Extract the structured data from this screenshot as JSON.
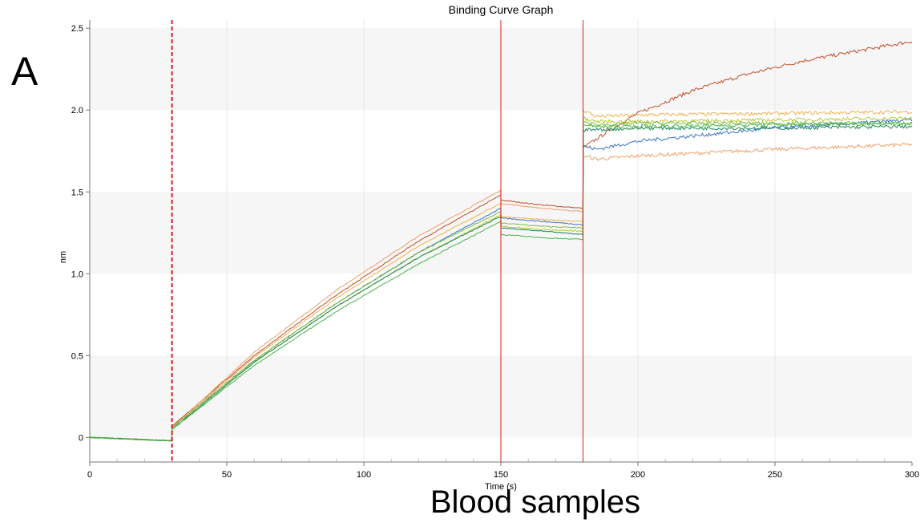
{
  "panel_label": "A",
  "caption": "Blood samples",
  "chart_data": {
    "type": "line",
    "title": "Binding Curve Graph",
    "xlabel": "Time (s)",
    "ylabel": "nm",
    "xlim": [
      0,
      300
    ],
    "ylim": [
      -0.15,
      2.55
    ],
    "x_ticks": [
      0,
      50,
      100,
      150,
      200,
      250,
      300
    ],
    "y_ticks": [
      0,
      0.5,
      1.0,
      1.5,
      2.0,
      2.5
    ],
    "y_tick_labels": [
      "0",
      "0.5",
      "1.0",
      "1.5",
      "2.0",
      "2.5"
    ],
    "grid_bands": true,
    "step_markers": [
      {
        "x": 30,
        "style": "dashed",
        "color": "#e41a1c"
      },
      {
        "x": 150,
        "style": "solid",
        "color": "#e41a1c"
      },
      {
        "x": 180,
        "style": "solid",
        "color": "#e41a1c"
      }
    ],
    "series": [
      {
        "color": "#c0502a",
        "points": [
          [
            0,
            0
          ],
          [
            15,
            -0.01
          ],
          [
            29.9,
            -0.02
          ],
          [
            30.1,
            0.07
          ],
          [
            60,
            0.5
          ],
          [
            90,
            0.87
          ],
          [
            120,
            1.2
          ],
          [
            149.9,
            1.48
          ],
          [
            150.1,
            1.45
          ],
          [
            165,
            1.42
          ],
          [
            179.9,
            1.4
          ],
          [
            180.1,
            1.77
          ],
          [
            190,
            1.88
          ],
          [
            200,
            1.98
          ],
          [
            220,
            2.12
          ],
          [
            240,
            2.22
          ],
          [
            260,
            2.3
          ],
          [
            280,
            2.36
          ],
          [
            300,
            2.42
          ]
        ]
      },
      {
        "color": "#ee9f6a",
        "points": [
          [
            0,
            0
          ],
          [
            15,
            -0.01
          ],
          [
            29.9,
            -0.02
          ],
          [
            30.1,
            0.06
          ],
          [
            60,
            0.52
          ],
          [
            90,
            0.9
          ],
          [
            120,
            1.23
          ],
          [
            149.9,
            1.51
          ],
          [
            150.1,
            1.43
          ],
          [
            165,
            1.4
          ],
          [
            179.9,
            1.38
          ],
          [
            180.1,
            1.72
          ],
          [
            185,
            1.7
          ],
          [
            200,
            1.72
          ],
          [
            250,
            1.76
          ],
          [
            300,
            1.79
          ]
        ]
      },
      {
        "color": "#f4b04c",
        "points": [
          [
            0,
            0
          ],
          [
            15,
            -0.01
          ],
          [
            29.9,
            -0.02
          ],
          [
            30.1,
            0.06
          ],
          [
            60,
            0.49
          ],
          [
            90,
            0.85
          ],
          [
            120,
            1.17
          ],
          [
            149.9,
            1.43
          ],
          [
            150.1,
            1.35
          ],
          [
            165,
            1.33
          ],
          [
            179.9,
            1.32
          ],
          [
            180.1,
            2.0
          ],
          [
            185,
            1.96
          ],
          [
            200,
            1.97
          ],
          [
            250,
            1.98
          ],
          [
            300,
            1.99
          ]
        ]
      },
      {
        "color": "#3a75c4",
        "points": [
          [
            0,
            0
          ],
          [
            15,
            -0.01
          ],
          [
            29.9,
            -0.02
          ],
          [
            30.1,
            0.06
          ],
          [
            60,
            0.47
          ],
          [
            90,
            0.82
          ],
          [
            120,
            1.13
          ],
          [
            149.9,
            1.4
          ],
          [
            150.1,
            1.34
          ],
          [
            165,
            1.32
          ],
          [
            179.9,
            1.3
          ],
          [
            180.1,
            1.78
          ],
          [
            185,
            1.76
          ],
          [
            200,
            1.81
          ],
          [
            250,
            1.89
          ],
          [
            300,
            1.94
          ]
        ]
      },
      {
        "color": "#b8c83a",
        "points": [
          [
            0,
            0
          ],
          [
            15,
            -0.01
          ],
          [
            29.9,
            -0.02
          ],
          [
            30.1,
            0.05
          ],
          [
            60,
            0.46
          ],
          [
            90,
            0.8
          ],
          [
            120,
            1.1
          ],
          [
            149.9,
            1.36
          ],
          [
            150.1,
            1.29
          ],
          [
            165,
            1.27
          ],
          [
            179.9,
            1.26
          ],
          [
            180.1,
            1.95
          ],
          [
            185,
            1.93
          ],
          [
            200,
            1.93
          ],
          [
            250,
            1.94
          ],
          [
            300,
            1.95
          ]
        ]
      },
      {
        "color": "#7fbf3f",
        "points": [
          [
            0,
            0
          ],
          [
            15,
            -0.01
          ],
          [
            29.9,
            -0.02
          ],
          [
            30.1,
            0.06
          ],
          [
            60,
            0.47
          ],
          [
            90,
            0.82
          ],
          [
            120,
            1.13
          ],
          [
            149.9,
            1.38
          ],
          [
            150.1,
            1.31
          ],
          [
            165,
            1.29
          ],
          [
            179.9,
            1.28
          ],
          [
            180.1,
            1.93
          ],
          [
            185,
            1.91
          ],
          [
            200,
            1.92
          ],
          [
            250,
            1.92
          ],
          [
            300,
            1.92
          ]
        ]
      },
      {
        "color": "#1f8a5a",
        "points": [
          [
            0,
            0
          ],
          [
            15,
            -0.01
          ],
          [
            29.9,
            -0.02
          ],
          [
            30.1,
            0.05
          ],
          [
            60,
            0.46
          ],
          [
            90,
            0.8
          ],
          [
            120,
            1.1
          ],
          [
            149.9,
            1.35
          ],
          [
            150.1,
            1.28
          ],
          [
            165,
            1.26
          ],
          [
            179.9,
            1.24
          ],
          [
            180.1,
            1.88
          ],
          [
            185,
            1.88
          ],
          [
            200,
            1.89
          ],
          [
            250,
            1.89
          ],
          [
            300,
            1.9
          ]
        ]
      },
      {
        "color": "#49b449",
        "points": [
          [
            0,
            0
          ],
          [
            15,
            -0.01
          ],
          [
            29.9,
            -0.02
          ],
          [
            30.1,
            0.05
          ],
          [
            60,
            0.44
          ],
          [
            90,
            0.77
          ],
          [
            120,
            1.06
          ],
          [
            149.9,
            1.32
          ],
          [
            150.1,
            1.24
          ],
          [
            165,
            1.22
          ],
          [
            179.9,
            1.21
          ],
          [
            180.1,
            1.91
          ],
          [
            185,
            1.9
          ],
          [
            200,
            1.9
          ],
          [
            250,
            1.91
          ],
          [
            300,
            1.92
          ]
        ]
      }
    ]
  }
}
